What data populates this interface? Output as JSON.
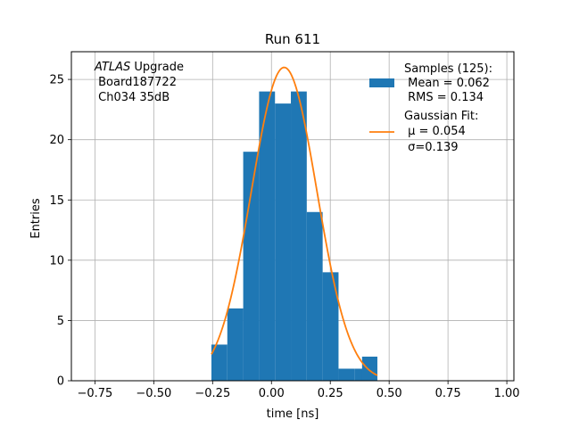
{
  "chart_data": {
    "type": "histogram",
    "title": "Run 611",
    "xlabel": "time [ns]",
    "ylabel": "Entries",
    "xlim": [
      -0.85,
      1.03
    ],
    "ylim": [
      0,
      27.3
    ],
    "grid": true,
    "x_ticks": [
      -0.75,
      -0.5,
      -0.25,
      0.0,
      0.25,
      0.5,
      0.75,
      1.0
    ],
    "x_tick_labels": [
      "−0.75",
      "−0.50",
      "−0.25",
      "0.00",
      "0.25",
      "0.50",
      "0.75",
      "1.00"
    ],
    "y_ticks": [
      0,
      5,
      10,
      15,
      20,
      25
    ],
    "y_tick_labels": [
      "0",
      "5",
      "10",
      "15",
      "20",
      "25"
    ],
    "histogram": {
      "bin_edges": [
        -0.255,
        -0.1875,
        -0.12,
        -0.0525,
        0.015,
        0.0825,
        0.15,
        0.2175,
        0.285,
        0.3525,
        0.42
      ],
      "counts": [
        3,
        6,
        19,
        24,
        23,
        24,
        14,
        9,
        1,
        1
      ],
      "overflow_bin": {
        "x0": 0.385,
        "x1": 0.45,
        "count": 2
      },
      "color": "#1f77b4"
    },
    "fit": {
      "type": "gaussian",
      "mu": 0.054,
      "sigma": 0.139,
      "amplitude": 26.0,
      "x_range": [
        -0.255,
        0.45
      ],
      "color": "#ff7f0e"
    },
    "legend": {
      "placement": "top-right",
      "entries": [
        {
          "kind": "bar",
          "lines": [
            "Samples (125):",
            " Mean = 0.062",
            " RMS = 0.134"
          ]
        },
        {
          "kind": "line",
          "lines": [
            "Gaussian Fit:",
            " μ = 0.054",
            " σ=0.139"
          ]
        }
      ]
    },
    "annotation": {
      "placement": "top-left",
      "italic": "ATLAS",
      "line1_rest": " Upgrade",
      "line2": " Board187722",
      "line3": " Ch034 35dB"
    }
  }
}
